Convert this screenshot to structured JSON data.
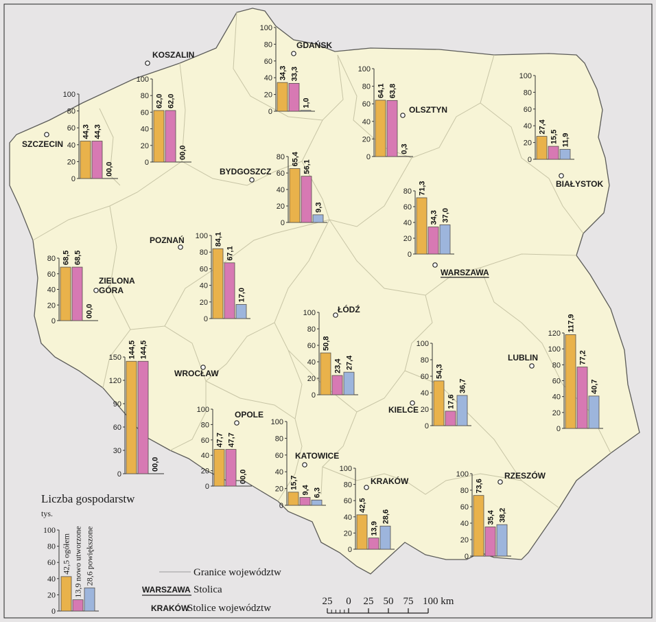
{
  "colors": {
    "page": "#e7e5e6",
    "land": "#f7f4d6",
    "border_line": "#c7c4a5",
    "outline": "#5b5b58",
    "total": "#e9b24b",
    "new": "#d779b3",
    "enlarged": "#9db5dc"
  },
  "regions": [
    {
      "id": "szczecin",
      "city": "SZCZECIN",
      "values": [
        44.3,
        44.3,
        0.0
      ],
      "labels": [
        "44,3",
        "44,3",
        "00,0"
      ],
      "ticks": [
        "100",
        "80",
        "60",
        "40",
        "20",
        "0"
      ],
      "max": 100
    },
    {
      "id": "koszalin",
      "city": "KOSZALIN",
      "values": [
        62.0,
        62.0,
        0.0
      ],
      "labels": [
        "62,0",
        "62,0",
        "00,0"
      ],
      "ticks": [
        "100",
        "80",
        "60",
        "40",
        "20",
        "0"
      ],
      "max": 100
    },
    {
      "id": "gdansk",
      "city": "GDAŃSK",
      "values": [
        34.3,
        33.3,
        1.0
      ],
      "labels": [
        "34,3",
        "33,3",
        "1,0"
      ],
      "ticks": [
        "100",
        "80",
        "60",
        "40",
        "20",
        "0"
      ],
      "max": 100
    },
    {
      "id": "olsztyn",
      "city": "OLSZTYN",
      "values": [
        64.1,
        63.8,
        0.3
      ],
      "labels": [
        "64,1",
        "63,8",
        "0,3"
      ],
      "ticks": [
        "100",
        "80",
        "60",
        "40",
        "20",
        "0"
      ],
      "max": 100
    },
    {
      "id": "bialystok",
      "city": "BIAŁYSTOK",
      "values": [
        27.4,
        15.5,
        11.9
      ],
      "labels": [
        "27,4",
        "15,5",
        "11,9"
      ],
      "ticks": [
        "100",
        "80",
        "60",
        "40",
        "20",
        "0"
      ],
      "max": 100
    },
    {
      "id": "bydgoszcz",
      "city": "BYDGOSZCZ",
      "values": [
        65.4,
        56.1,
        9.3
      ],
      "labels": [
        "65,4",
        "56,1",
        "9,3"
      ],
      "ticks": [
        "80",
        "60",
        "40",
        "20",
        "0"
      ],
      "max": 80
    },
    {
      "id": "warszawa",
      "city": "WARSZAWA",
      "values": [
        71.3,
        34.3,
        37.0
      ],
      "labels": [
        "71,3",
        "34,3",
        "37,0"
      ],
      "ticks": [
        "80",
        "60",
        "40",
        "20",
        "0"
      ],
      "max": 80
    },
    {
      "id": "poznan",
      "city": "POZNAŃ",
      "values": [
        84.1,
        67.1,
        17.0
      ],
      "labels": [
        "84,1",
        "67,1",
        "17,0"
      ],
      "ticks": [
        "100",
        "80",
        "60",
        "40",
        "20",
        "0"
      ],
      "max": 100
    },
    {
      "id": "zielona",
      "city_lines": [
        "ZIELONA",
        "GÓRA"
      ],
      "values": [
        68.5,
        68.5,
        0.0
      ],
      "labels": [
        "68,5",
        "68,5",
        "00,0"
      ],
      "ticks": [
        "80",
        "60",
        "40",
        "20",
        "0"
      ],
      "max": 80
    },
    {
      "id": "lodz",
      "city": "ŁÓDŹ",
      "values": [
        50.8,
        23.4,
        27.4
      ],
      "labels": [
        "50,8",
        "23,4",
        "27,4"
      ],
      "ticks": [
        "100",
        "80",
        "60",
        "40",
        "20",
        "0"
      ],
      "max": 100
    },
    {
      "id": "wroclaw",
      "city": "WROCŁAW",
      "values": [
        144.5,
        144.5,
        0.0
      ],
      "labels": [
        "144,5",
        "144,5",
        "00,0"
      ],
      "ticks": [
        "150",
        "120",
        "90",
        "60",
        "30",
        "0"
      ],
      "max": 150
    },
    {
      "id": "kielce",
      "city": "KIELCE",
      "values": [
        54.3,
        17.6,
        36.7
      ],
      "labels": [
        "54,3",
        "17,6",
        "36,7"
      ],
      "ticks": [
        "100",
        "80",
        "60",
        "40",
        "20",
        "0"
      ],
      "max": 100
    },
    {
      "id": "lublin",
      "city": "LUBLIN",
      "values": [
        117.9,
        77.2,
        40.7
      ],
      "labels": [
        "117,9",
        "77,2",
        "40,7"
      ],
      "ticks": [
        "120",
        "100",
        "80",
        "60",
        "40",
        "20",
        "0"
      ],
      "max": 120
    },
    {
      "id": "opole",
      "city": "OPOLE",
      "values": [
        47.7,
        47.7,
        0.0
      ],
      "labels": [
        "47,7",
        "47,7",
        "00,0"
      ],
      "ticks": [
        "100",
        "80",
        "60",
        "40",
        "20",
        "0"
      ],
      "max": 100
    },
    {
      "id": "katowice",
      "city": "KATOWICE",
      "values": [
        15.7,
        9.4,
        6.3
      ],
      "labels": [
        "15,7",
        "9,4",
        "6,3"
      ],
      "ticks": [
        "100",
        "80",
        "60",
        "40",
        "20",
        "0"
      ],
      "max": 100
    },
    {
      "id": "krakow",
      "city": "KRAKÓW",
      "values": [
        42.5,
        13.9,
        28.6
      ],
      "labels": [
        "42,5",
        "13,9",
        "28,6"
      ],
      "ticks": [
        "100",
        "80",
        "60",
        "40",
        "20",
        "0"
      ],
      "max": 100
    },
    {
      "id": "rzeszow",
      "city": "RZESZÓW",
      "values": [
        73.6,
        35.4,
        38.2
      ],
      "labels": [
        "73,6",
        "35,4",
        "38,2"
      ],
      "ticks": [
        "100",
        "80",
        "60",
        "40",
        "20",
        "0"
      ],
      "max": 100
    }
  ],
  "legend": {
    "title": "Liczba gospodarstw",
    "unit": "tys.",
    "ticks": [
      "100",
      "80",
      "60",
      "40",
      "20",
      "0"
    ],
    "max": 100,
    "values": [
      42.5,
      13.9,
      28.6
    ],
    "labels": [
      "42,5 ogółem",
      "13,9 nowo utworzone",
      "28,6 powiększone"
    ],
    "boundary_label": "Granice województw",
    "capital_city": "WARSZAWA",
    "capital_label": "Stolica",
    "voiv_city": "KRAKÓW",
    "voiv_label": "Stolice województw"
  },
  "scale": {
    "ticks": [
      "25",
      "0",
      "25",
      "50",
      "75",
      "100 km"
    ]
  }
}
